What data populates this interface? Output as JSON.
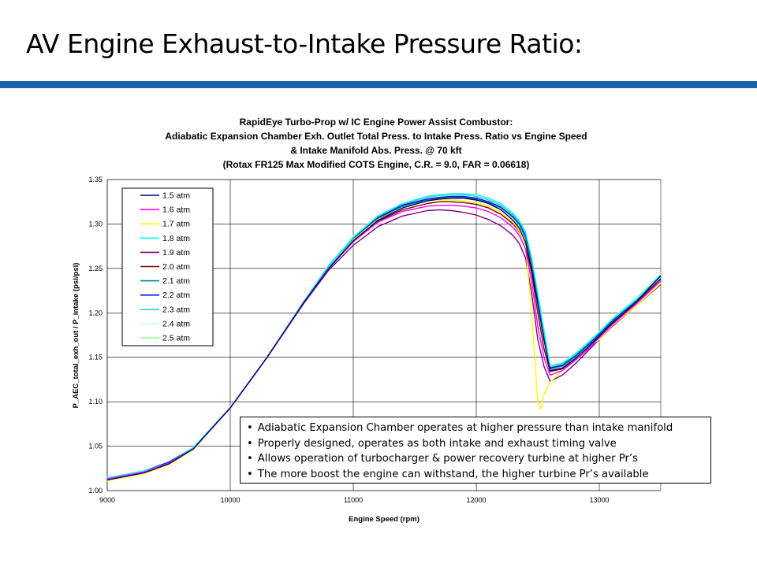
{
  "slide": {
    "title": "AV Engine Exhaust-to-Intake Pressure Ratio:",
    "accent_color": "#1d63a8"
  },
  "notes": [
    "Adiabatic Expansion Chamber operates at higher pressure than intake manifold",
    "Properly designed, operates as both intake and exhaust timing valve",
    "Allows operation of turbocharger & power recovery turbine at higher Pr’s",
    "The more boost the engine can withstand, the higher turbine Pr’s available"
  ],
  "chart_data": {
    "type": "line",
    "title_lines": [
      "RapidEye Turbo-Prop w/ IC Engine Power Assist Combustor:",
      "Adiabatic Expansion Chamber Exh. Outlet Total Press. to Intake Press. Ratio vs Engine Speed",
      "& Intake Manifold Abs. Press. @ 70 kft",
      "(Rotax FR125 Max Modified COTS Engine, C.R. = 9.0, FAR = 0.06618)"
    ],
    "xlabel": "Engine Speed (rpm)",
    "ylabel": "P_AEC_total_exh_out / P_intake (psi/psi)",
    "xlim": [
      9000,
      13500
    ],
    "ylim": [
      1.0,
      1.35
    ],
    "xticks": [
      9000,
      10000,
      11000,
      12000,
      13000
    ],
    "yticks": [
      1.0,
      1.05,
      1.1,
      1.15,
      1.2,
      1.25,
      1.3,
      1.35
    ],
    "grid": true,
    "legend_position": "top-left",
    "series": [
      {
        "name": "1.5 atm",
        "color": "#000080",
        "x": [
          9000,
          9300,
          9500,
          9700,
          10000,
          10300,
          10600,
          10800,
          11000,
          11200,
          11400,
          11600,
          11700,
          11800,
          11900,
          12000,
          12100,
          12200,
          12300,
          12350,
          12400,
          12450,
          12500,
          12550,
          12600,
          12700,
          12800,
          12900,
          13000,
          13100,
          13300,
          13500
        ],
        "y": [
          1.012,
          1.02,
          1.03,
          1.047,
          1.093,
          1.15,
          1.212,
          1.25,
          1.281,
          1.304,
          1.318,
          1.326,
          1.328,
          1.329,
          1.329,
          1.327,
          1.323,
          1.316,
          1.304,
          1.295,
          1.28,
          1.25,
          1.21,
          1.17,
          1.135,
          1.138,
          1.148,
          1.16,
          1.174,
          1.188,
          1.212,
          1.242
        ]
      },
      {
        "name": "1.6 atm",
        "color": "#ff00ff",
        "x": [
          9000,
          9300,
          9500,
          9700,
          10000,
          10300,
          10600,
          10800,
          11000,
          11200,
          11400,
          11600,
          11700,
          11800,
          11900,
          12000,
          12100,
          12200,
          12300,
          12350,
          12400,
          12450,
          12500,
          12550,
          12600,
          12700,
          12800,
          12900,
          13000,
          13100,
          13300,
          13500
        ],
        "y": [
          1.013,
          1.021,
          1.031,
          1.047,
          1.093,
          1.15,
          1.212,
          1.25,
          1.28,
          1.302,
          1.314,
          1.32,
          1.321,
          1.321,
          1.32,
          1.318,
          1.314,
          1.307,
          1.296,
          1.287,
          1.272,
          1.235,
          1.185,
          1.15,
          1.13,
          1.135,
          1.146,
          1.158,
          1.172,
          1.186,
          1.21,
          1.236
        ]
      },
      {
        "name": "1.7 atm",
        "color": "#ffff00",
        "x": [
          9000,
          9300,
          9500,
          9700,
          10000,
          10300,
          10600,
          10800,
          11000,
          11200,
          11400,
          11600,
          11700,
          11800,
          11900,
          12000,
          12100,
          12200,
          12300,
          12350,
          12400,
          12450,
          12500,
          12525,
          12550,
          12600,
          12700,
          12800,
          12900,
          13000,
          13100,
          13300,
          13500
        ],
        "y": [
          1.011,
          1.019,
          1.029,
          1.046,
          1.093,
          1.15,
          1.212,
          1.25,
          1.282,
          1.305,
          1.318,
          1.326,
          1.327,
          1.327,
          1.326,
          1.324,
          1.32,
          1.313,
          1.302,
          1.292,
          1.275,
          1.2,
          1.1,
          1.092,
          1.108,
          1.122,
          1.135,
          1.146,
          1.16,
          1.17,
          1.185,
          1.208,
          1.233
        ]
      },
      {
        "name": "1.8 atm",
        "color": "#00ffff",
        "x": [
          9000,
          9300,
          9500,
          9700,
          10000,
          10300,
          10600,
          10800,
          11000,
          11200,
          11400,
          11600,
          11700,
          11800,
          11900,
          12000,
          12100,
          12200,
          12300,
          12350,
          12400,
          12450,
          12500,
          12550,
          12600,
          12700,
          12800,
          12900,
          13000,
          13100,
          13300,
          13500
        ],
        "y": [
          1.014,
          1.022,
          1.031,
          1.048,
          1.093,
          1.15,
          1.213,
          1.252,
          1.285,
          1.309,
          1.323,
          1.331,
          1.333,
          1.334,
          1.334,
          1.333,
          1.329,
          1.323,
          1.312,
          1.304,
          1.291,
          1.262,
          1.222,
          1.18,
          1.14,
          1.143,
          1.153,
          1.165,
          1.178,
          1.192,
          1.215,
          1.24
        ]
      },
      {
        "name": "1.9 atm",
        "color": "#800080",
        "x": [
          9000,
          9300,
          9500,
          9700,
          10000,
          10300,
          10600,
          10800,
          11000,
          11200,
          11400,
          11600,
          11700,
          11800,
          11900,
          12000,
          12100,
          12200,
          12300,
          12350,
          12400,
          12450,
          12500,
          12550,
          12600,
          12700,
          12800,
          12900,
          13000,
          13100,
          13300,
          13500
        ],
        "y": [
          1.012,
          1.02,
          1.03,
          1.047,
          1.093,
          1.15,
          1.211,
          1.248,
          1.276,
          1.297,
          1.309,
          1.315,
          1.316,
          1.315,
          1.313,
          1.31,
          1.305,
          1.298,
          1.287,
          1.278,
          1.262,
          1.222,
          1.17,
          1.14,
          1.123,
          1.13,
          1.142,
          1.156,
          1.17,
          1.184,
          1.208,
          1.232
        ]
      },
      {
        "name": "2.0 atm",
        "color": "#800000",
        "x": [
          9000,
          9300,
          9500,
          9700,
          10000,
          10300,
          10600,
          10800,
          11000,
          11200,
          11400,
          11600,
          11700,
          11800,
          11900,
          12000,
          12100,
          12200,
          12300,
          12350,
          12400,
          12450,
          12500,
          12550,
          12600,
          12700,
          12800,
          12900,
          13000,
          13100,
          13300,
          13500
        ],
        "y": [
          1.013,
          1.021,
          1.031,
          1.047,
          1.093,
          1.15,
          1.212,
          1.25,
          1.281,
          1.303,
          1.316,
          1.323,
          1.325,
          1.325,
          1.324,
          1.322,
          1.318,
          1.311,
          1.3,
          1.291,
          1.276,
          1.245,
          1.2,
          1.16,
          1.134,
          1.137,
          1.147,
          1.159,
          1.173,
          1.187,
          1.211,
          1.238
        ]
      },
      {
        "name": "2.1 atm",
        "color": "#008080",
        "x": [
          9000,
          9300,
          9500,
          9700,
          10000,
          10300,
          10600,
          10800,
          11000,
          11200,
          11400,
          11600,
          11700,
          11800,
          11900,
          12000,
          12100,
          12200,
          12300,
          12350,
          12400,
          12450,
          12500,
          12550,
          12600,
          12700,
          12800,
          12900,
          13000,
          13100,
          13300,
          13500
        ],
        "y": [
          1.013,
          1.021,
          1.031,
          1.047,
          1.093,
          1.15,
          1.212,
          1.251,
          1.283,
          1.306,
          1.32,
          1.327,
          1.329,
          1.33,
          1.33,
          1.328,
          1.324,
          1.318,
          1.307,
          1.299,
          1.285,
          1.256,
          1.215,
          1.175,
          1.137,
          1.14,
          1.15,
          1.162,
          1.175,
          1.189,
          1.213,
          1.239
        ]
      },
      {
        "name": "2.2 atm",
        "color": "#0000ff",
        "x": [
          9000,
          9300,
          9500,
          9700,
          10000,
          10300,
          10600,
          10800,
          11000,
          11200,
          11400,
          11600,
          11700,
          11800,
          11900,
          12000,
          12100,
          12200,
          12300,
          12350,
          12400,
          12450,
          12500,
          12550,
          12600,
          12700,
          12800,
          12900,
          13000,
          13100,
          13300,
          13500
        ],
        "y": [
          1.014,
          1.022,
          1.032,
          1.048,
          1.093,
          1.15,
          1.213,
          1.252,
          1.284,
          1.307,
          1.321,
          1.328,
          1.33,
          1.331,
          1.331,
          1.329,
          1.325,
          1.319,
          1.308,
          1.3,
          1.287,
          1.258,
          1.218,
          1.178,
          1.138,
          1.141,
          1.151,
          1.163,
          1.176,
          1.19,
          1.214,
          1.241
        ]
      },
      {
        "name": "2.3 atm",
        "color": "#33cccc",
        "x": [
          9000,
          9300,
          9500,
          9700,
          10000,
          10300,
          10600,
          10800,
          11000,
          11200,
          11400,
          11600,
          11700,
          11800,
          11900,
          12000,
          12100,
          12200,
          12300,
          12350,
          12400,
          12450,
          12500,
          12550,
          12600,
          12700,
          12800,
          12900,
          13000,
          13100,
          13300,
          13500
        ],
        "y": [
          1.014,
          1.022,
          1.032,
          1.048,
          1.093,
          1.15,
          1.213,
          1.253,
          1.285,
          1.308,
          1.322,
          1.33,
          1.332,
          1.333,
          1.333,
          1.331,
          1.327,
          1.321,
          1.31,
          1.302,
          1.289,
          1.26,
          1.22,
          1.18,
          1.139,
          1.142,
          1.152,
          1.164,
          1.177,
          1.191,
          1.215,
          1.242
        ]
      },
      {
        "name": "2.4 atm",
        "color": "#ccffff",
        "x": [
          9000,
          9300,
          9500,
          9700,
          10000,
          10300,
          10600,
          10800,
          11000,
          11200,
          11400,
          11600,
          11700,
          11800,
          11900,
          12000,
          12100,
          12200,
          12300,
          12350,
          12400,
          12450,
          12500,
          12550,
          12600,
          12700,
          12800,
          12900,
          13000,
          13100,
          13300,
          13500
        ],
        "y": [
          1.015,
          1.023,
          1.033,
          1.049,
          1.094,
          1.151,
          1.214,
          1.254,
          1.286,
          1.309,
          1.323,
          1.331,
          1.333,
          1.334,
          1.334,
          1.332,
          1.328,
          1.322,
          1.311,
          1.303,
          1.29,
          1.262,
          1.222,
          1.182,
          1.14,
          1.143,
          1.153,
          1.165,
          1.178,
          1.192,
          1.216,
          1.243
        ]
      },
      {
        "name": "2.5 atm",
        "color": "#99ff99",
        "x": [
          9000,
          9300,
          9500,
          9700,
          10000,
          10300,
          10600,
          10800,
          11000,
          11200,
          11400,
          11600,
          11700,
          11800,
          11900,
          12000,
          12100,
          12200,
          12300,
          12350,
          12400,
          12450,
          12500,
          12550,
          12600,
          12700,
          12800,
          12900,
          13000,
          13100,
          13300,
          13500
        ],
        "y": [
          1.015,
          1.023,
          1.033,
          1.049,
          1.094,
          1.151,
          1.214,
          1.254,
          1.286,
          1.309,
          1.323,
          1.331,
          1.333,
          1.334,
          1.334,
          1.332,
          1.328,
          1.322,
          1.311,
          1.303,
          1.29,
          1.262,
          1.222,
          1.182,
          1.141,
          1.144,
          1.154,
          1.166,
          1.179,
          1.193,
          1.217,
          1.244
        ]
      }
    ]
  }
}
